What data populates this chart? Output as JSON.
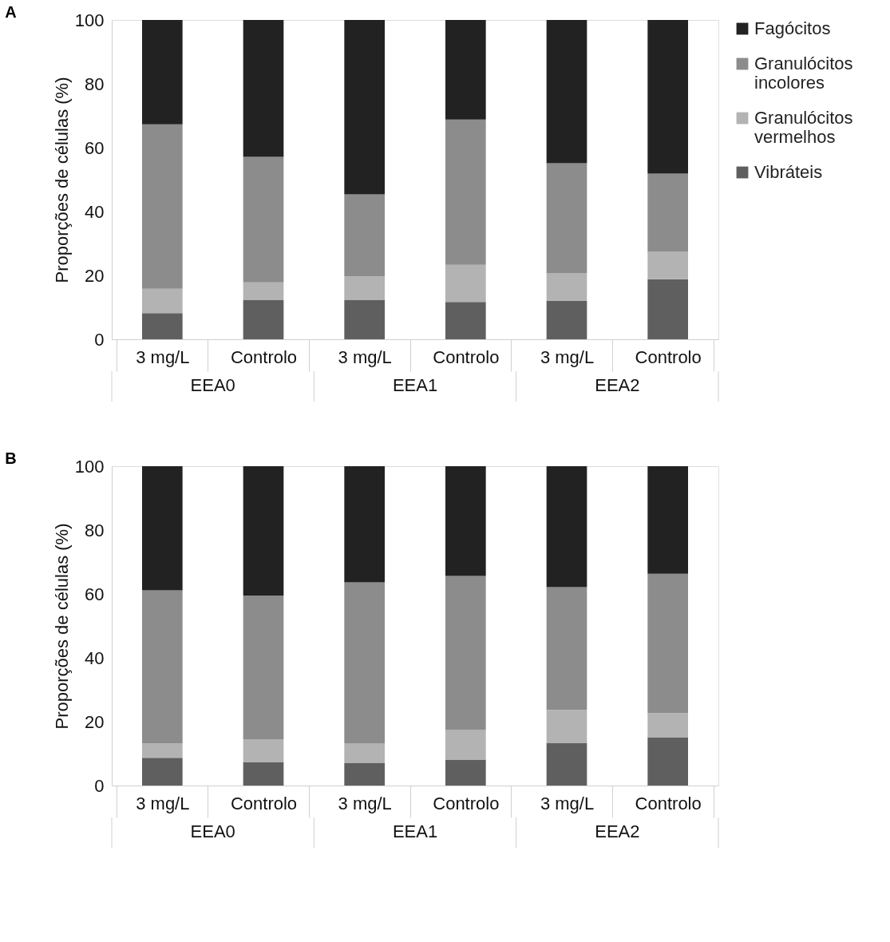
{
  "chart_data": [
    {
      "type": "bar",
      "title": "A",
      "ylabel": "Proporções de células (%)",
      "stacked": true,
      "legend": "right",
      "grid": false,
      "categories": [
        "3 mg/L",
        "Controlo",
        "3 mg/L",
        "Controlo",
        "3 mg/L",
        "Controlo"
      ],
      "annotations": [
        "EEA0",
        "EEA1",
        "EEA2"
      ],
      "ylim": [
        0,
        100
      ],
      "yticks": [
        0,
        20,
        40,
        60,
        80,
        100
      ],
      "series": [
        {
          "name": "Vibráteis",
          "color": "#5f5f5f",
          "values": [
            8.2,
            12.4,
            12.4,
            11.7,
            12.0,
            18.8
          ]
        },
        {
          "name": "Granulócitos vermelhos",
          "color": "#b3b3b3",
          "values": [
            7.6,
            5.4,
            7.3,
            11.6,
            8.6,
            8.6
          ]
        },
        {
          "name": "Granulócitos incolores",
          "color": "#8c8c8c",
          "values": [
            51.5,
            39.3,
            25.7,
            45.5,
            34.5,
            24.5
          ]
        },
        {
          "name": "Fagócitos",
          "color": "#222222",
          "values": [
            32.7,
            42.9,
            54.6,
            31.2,
            44.9,
            48.1
          ]
        }
      ]
    },
    {
      "type": "bar",
      "title": "B",
      "ylabel": "Proporções de células (%)",
      "stacked": true,
      "legend": "right",
      "grid": false,
      "categories": [
        "3 mg/L",
        "Controlo",
        "3 mg/L",
        "Controlo",
        "3 mg/L",
        "Controlo"
      ],
      "annotations": [
        "EEA0",
        "EEA1",
        "EEA2"
      ],
      "ylim": [
        0,
        100
      ],
      "yticks": [
        0,
        20,
        40,
        60,
        80,
        100
      ],
      "series": [
        {
          "name": "Vibráteis",
          "color": "#5f5f5f",
          "values": [
            8.7,
            7.4,
            7.1,
            8.1,
            13.4,
            15.0
          ]
        },
        {
          "name": "Granulócitos vermelhos",
          "color": "#b3b3b3",
          "values": [
            4.5,
            7.1,
            6.0,
            9.3,
            10.3,
            7.7
          ]
        },
        {
          "name": "Granulócitos incolores",
          "color": "#8c8c8c",
          "values": [
            47.9,
            45.0,
            50.5,
            48.2,
            38.4,
            43.6
          ]
        },
        {
          "name": "Fagócitos",
          "color": "#222222",
          "values": [
            38.9,
            40.5,
            36.4,
            34.4,
            37.9,
            33.7
          ]
        }
      ]
    }
  ]
}
